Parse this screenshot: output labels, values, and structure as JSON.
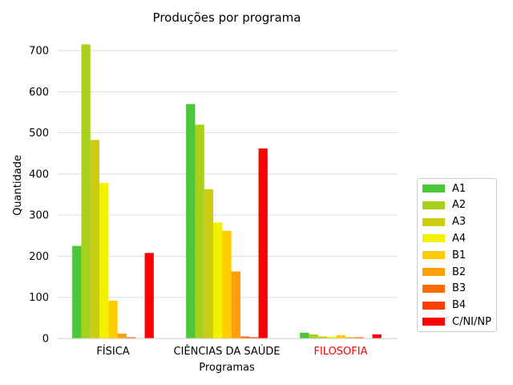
{
  "chart_data": {
    "type": "bar",
    "title": "Produções por programa",
    "xlabel": "Programas",
    "ylabel": "Quantidade",
    "ylim": [
      0,
      745
    ],
    "yticks": [
      0,
      100,
      200,
      300,
      400,
      500,
      600,
      700
    ],
    "grid": "horizontal",
    "legend_position": "right",
    "categories": [
      {
        "label": "FÍSICA",
        "color": "#000000"
      },
      {
        "label": "CIÊNCIAS DA SAÚDE",
        "color": "#000000"
      },
      {
        "label": "FILOSOFIA",
        "color": "#ff0000"
      }
    ],
    "series": [
      {
        "name": "A1",
        "color": "#4cc63a",
        "values": [
          225,
          570,
          14
        ]
      },
      {
        "name": "A2",
        "color": "#a7d11a",
        "values": [
          715,
          520,
          10
        ]
      },
      {
        "name": "A3",
        "color": "#cccc10",
        "values": [
          483,
          363,
          5
        ]
      },
      {
        "name": "A4",
        "color": "#f2f200",
        "values": [
          378,
          282,
          4
        ]
      },
      {
        "name": "B1",
        "color": "#ffcc00",
        "values": [
          92,
          262,
          8
        ]
      },
      {
        "name": "B2",
        "color": "#ff9e06",
        "values": [
          12,
          163,
          3
        ]
      },
      {
        "name": "B3",
        "color": "#ff6d00",
        "values": [
          3,
          5,
          3
        ]
      },
      {
        "name": "B4",
        "color": "#ff3d00",
        "values": [
          0,
          3,
          0
        ]
      },
      {
        "name": "C/NI/NP",
        "color": "#ff0000",
        "values": [
          208,
          462,
          10
        ]
      }
    ]
  }
}
